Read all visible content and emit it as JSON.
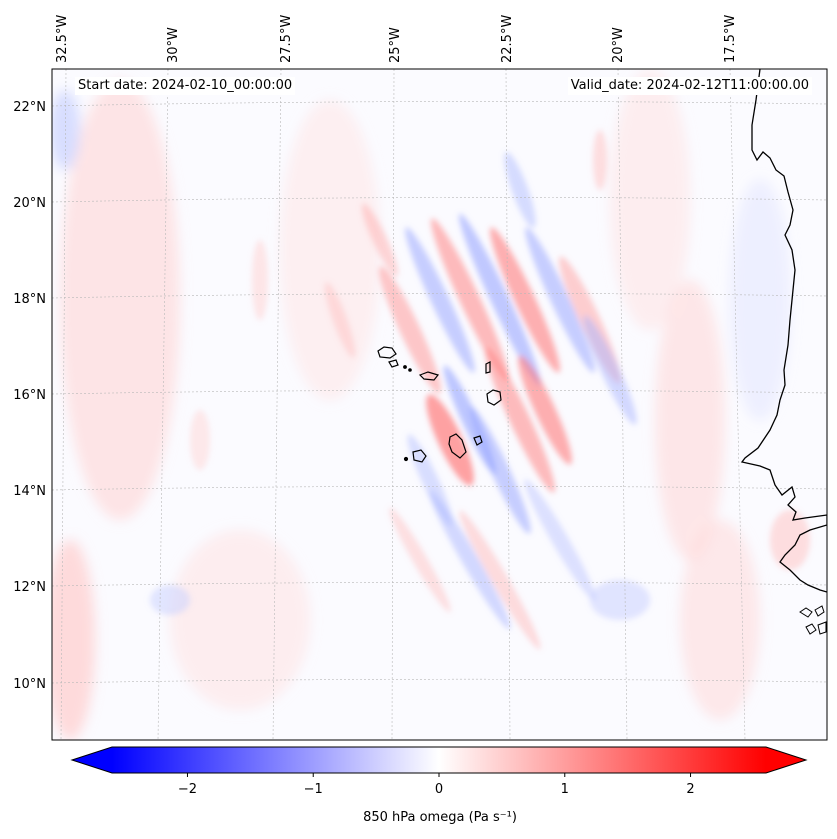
{
  "annotations": {
    "start_date": "Start date: 2024-02-10_00:00:00",
    "valid_date": "Valid_date: 2024-02-12T11:00:00.00"
  },
  "map": {
    "lon_ticks": [
      "32.5°W",
      "30°W",
      "27.5°W",
      "25°W",
      "22.5°W",
      "20°W",
      "17.5°W"
    ],
    "lat_ticks": [
      "22°N",
      "20°N",
      "18°N",
      "16°N",
      "14°N",
      "12°N",
      "10°N"
    ],
    "lat_values": [
      22,
      20,
      18,
      16,
      14,
      12,
      10
    ],
    "lon_values": [
      -32.5,
      -30,
      -27.5,
      -25,
      -22.5,
      -20,
      -17.5
    ]
  },
  "colorbar": {
    "label": "850 hPa omega (Pa s⁻¹)",
    "ticks": [
      "−2",
      "−1",
      "0",
      "1",
      "2"
    ],
    "tick_values": [
      -2,
      -1,
      0,
      1,
      2
    ],
    "vmin": -2.6,
    "vmax": 2.6,
    "colors": {
      "low": "#0000ff",
      "mid": "#ffffff",
      "high": "#ff0000"
    }
  },
  "chart_data": {
    "type": "heatmap",
    "variable": "850 hPa omega",
    "units": "Pa s⁻¹",
    "range": [
      -2.6,
      2.6
    ],
    "colormap": "bwr",
    "longitude_range": [
      -33,
      -16.5
    ],
    "latitude_range": [
      9,
      22.5
    ],
    "start_date": "2024-02-10_00:00:00",
    "valid_date": "2024-02-12T11:00:00.00",
    "notes": "Alternating positive/negative bands oriented NNW-SSE near the Cape Verde islands, magnitudes roughly ±0.5 to ±1.2 Pa s⁻¹"
  }
}
